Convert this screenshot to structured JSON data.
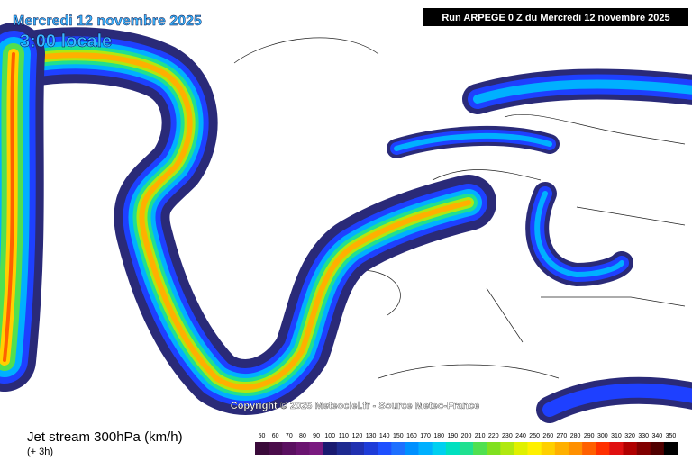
{
  "header": {
    "date": "Mercredi 12 novembre 2025",
    "time": "3:00 locale",
    "run": "Run ARPEGE 0 Z du Mercredi 12 novembre 2025"
  },
  "credit": "Copyright © 2025 Meteociel.fr - Source Meteo-France",
  "legend": {
    "title": "Jet stream 300hPa (km/h)",
    "lead": "(+ 3h)",
    "steps": [
      {
        "value": 50,
        "color": "#3a0a3a"
      },
      {
        "value": 60,
        "color": "#4a0c4a"
      },
      {
        "value": 70,
        "color": "#5a1060"
      },
      {
        "value": 80,
        "color": "#6a1470"
      },
      {
        "value": 90,
        "color": "#7a1a80"
      },
      {
        "value": 100,
        "color": "#1a1a70"
      },
      {
        "value": 110,
        "color": "#1e2a90"
      },
      {
        "value": 120,
        "color": "#2030b0"
      },
      {
        "value": 130,
        "color": "#1e3cd8"
      },
      {
        "value": 140,
        "color": "#1e50ff"
      },
      {
        "value": 150,
        "color": "#1e70ff"
      },
      {
        "value": 160,
        "color": "#0090ff"
      },
      {
        "value": 170,
        "color": "#00b0ff"
      },
      {
        "value": 180,
        "color": "#00d0f0"
      },
      {
        "value": 190,
        "color": "#00e0c0"
      },
      {
        "value": 200,
        "color": "#20e090"
      },
      {
        "value": 210,
        "color": "#50e050"
      },
      {
        "value": 220,
        "color": "#80e020"
      },
      {
        "value": 230,
        "color": "#b0e810"
      },
      {
        "value": 240,
        "color": "#e0f000"
      },
      {
        "value": 250,
        "color": "#fff000"
      },
      {
        "value": 260,
        "color": "#ffd000"
      },
      {
        "value": 270,
        "color": "#ffb000"
      },
      {
        "value": 280,
        "color": "#ff9000"
      },
      {
        "value": 290,
        "color": "#ff6000"
      },
      {
        "value": 300,
        "color": "#ff3000"
      },
      {
        "value": 310,
        "color": "#e01010"
      },
      {
        "value": 320,
        "color": "#b00000"
      },
      {
        "value": 330,
        "color": "#800000"
      },
      {
        "value": 340,
        "color": "#500000"
      },
      {
        "value": 350,
        "color": "#000000"
      }
    ]
  }
}
